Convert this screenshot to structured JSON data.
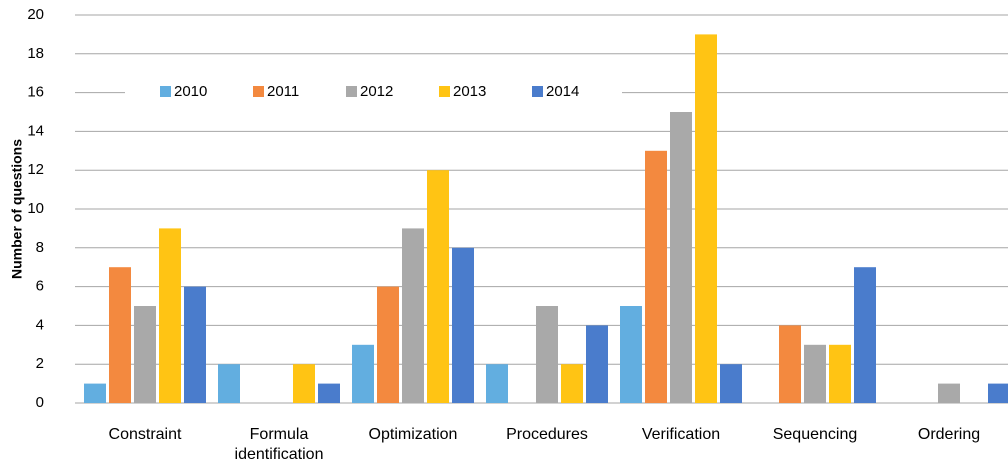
{
  "chart_data": {
    "type": "bar",
    "y_label": "Number of questions",
    "categories": [
      "Constraint",
      "Formula identification",
      "Optimization",
      "Procedures",
      "Verification",
      "Sequencing",
      "Ordering"
    ],
    "series": [
      {
        "name": "2010",
        "color": "#62aee0",
        "values": [
          1,
          2,
          3,
          2,
          5,
          0,
          0
        ]
      },
      {
        "name": "2011",
        "color": "#f3893f",
        "values": [
          7,
          0,
          6,
          0,
          13,
          4,
          0
        ]
      },
      {
        "name": "2012",
        "color": "#a9a9a9",
        "values": [
          5,
          0,
          9,
          5,
          15,
          3,
          1
        ]
      },
      {
        "name": "2013",
        "color": "#ffc414",
        "values": [
          9,
          2,
          12,
          2,
          19,
          3,
          0
        ]
      },
      {
        "name": "2014",
        "color": "#4a7ccc",
        "values": [
          6,
          1,
          8,
          4,
          2,
          7,
          1
        ]
      }
    ],
    "ylim": [
      0,
      20
    ],
    "yticks": [
      0,
      2,
      4,
      6,
      8,
      10,
      12,
      14,
      16,
      18,
      20
    ],
    "grid": true,
    "legend": "top-left"
  }
}
